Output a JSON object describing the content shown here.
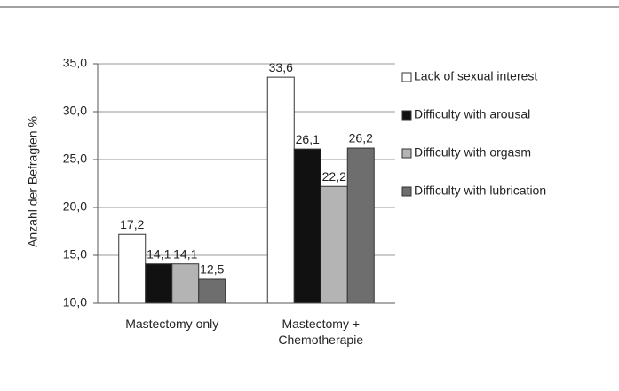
{
  "chart_data": {
    "type": "bar",
    "y_label": "Anzahl der Befragten %",
    "categories": [
      "Mastectomy only",
      "Mastectomy + Chemotherapie"
    ],
    "series": [
      {
        "name": "Lack of sexual interest",
        "color": "#ffffff",
        "values": [
          17.2,
          33.6
        ],
        "value_labels": [
          "17,2",
          "33,6"
        ]
      },
      {
        "name": "Difficulty with arousal",
        "color": "#111111",
        "values": [
          14.1,
          26.1
        ],
        "value_labels": [
          "14,1",
          "26,1"
        ]
      },
      {
        "name": "Difficulty with orgasm",
        "color": "#b4b4b4",
        "values": [
          14.1,
          22.2
        ],
        "value_labels": [
          "14,1",
          "22,2"
        ]
      },
      {
        "name": "Difficulty with lubrication",
        "color": "#6e6e6e",
        "values": [
          12.5,
          26.2
        ],
        "value_labels": [
          "12,5",
          "26,2"
        ]
      }
    ],
    "ylim": [
      10,
      35
    ],
    "yticks": [
      {
        "value": 10,
        "label": "10,0"
      },
      {
        "value": 15,
        "label": "15,0"
      },
      {
        "value": 20,
        "label": "20,0"
      },
      {
        "value": 25,
        "label": "25,0"
      },
      {
        "value": 30,
        "label": "30,0"
      },
      {
        "value": 35,
        "label": "35,0"
      }
    ],
    "grid": true,
    "legend": "right"
  }
}
